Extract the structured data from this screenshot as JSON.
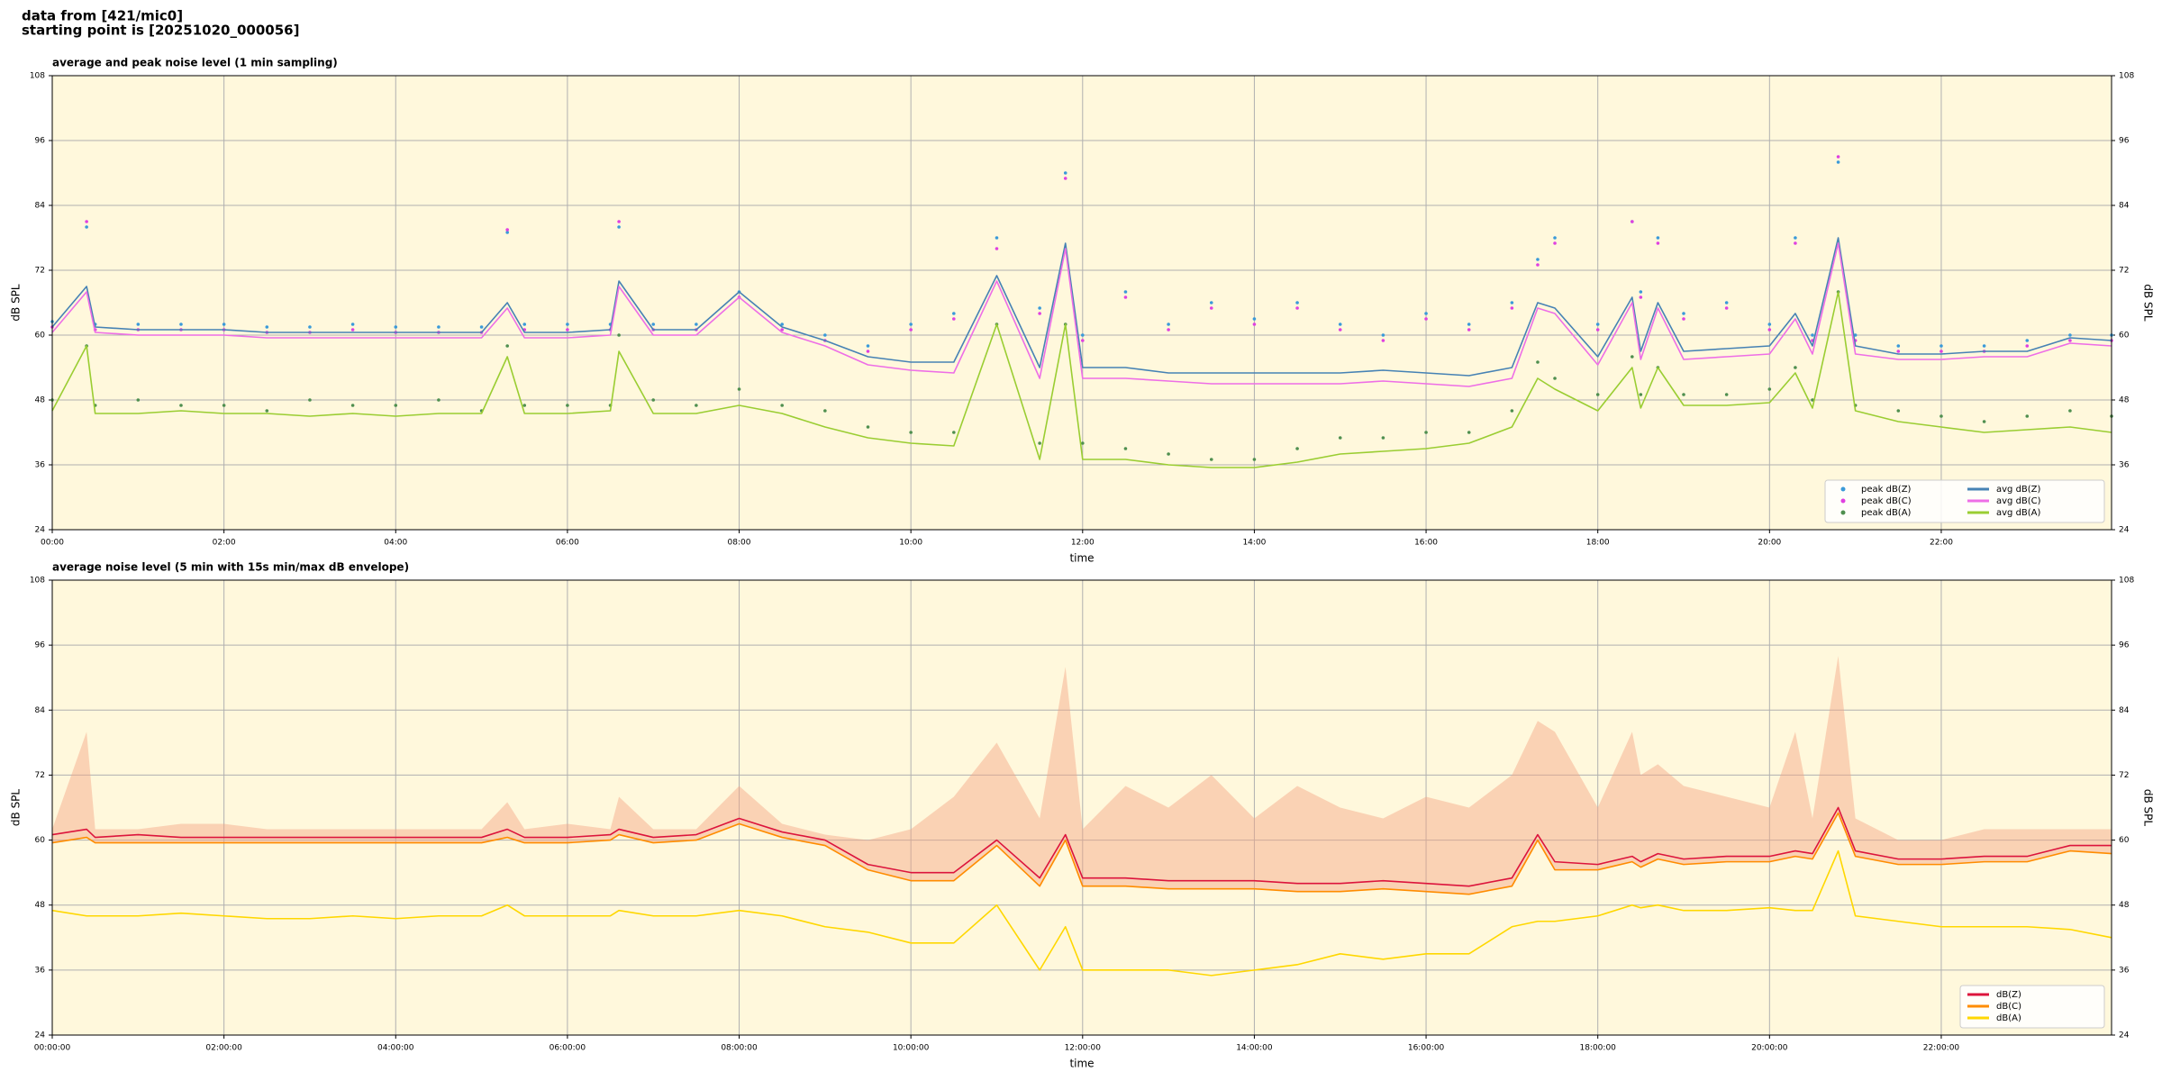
{
  "header": [
    "data from [421/mic0]",
    "starting point is [20251020_000056]"
  ],
  "chart_data": [
    {
      "type": "line",
      "title": "average and peak noise level (1 min sampling)",
      "xlabel": "time",
      "ylabel": "dB SPL",
      "background": "#fff8dc",
      "grid": true,
      "legend": "lower right",
      "legend_columns": 2,
      "xlim": [
        "00:00",
        "23:59"
      ],
      "ylim": [
        24,
        108
      ],
      "xticks": [
        "00:00",
        "02:00",
        "04:00",
        "06:00",
        "08:00",
        "10:00",
        "12:00",
        "14:00",
        "16:00",
        "18:00",
        "20:00",
        "22:00"
      ],
      "yticks": [
        24,
        36,
        48,
        60,
        72,
        84,
        96,
        108
      ],
      "x": [
        "00:00",
        "00:24",
        "00:30",
        "01:00",
        "01:30",
        "02:00",
        "02:30",
        "03:00",
        "03:30",
        "04:00",
        "04:30",
        "05:00",
        "05:18",
        "05:30",
        "06:00",
        "06:30",
        "06:36",
        "07:00",
        "07:30",
        "08:00",
        "08:30",
        "09:00",
        "09:30",
        "10:00",
        "10:30",
        "11:00",
        "11:30",
        "11:48",
        "12:00",
        "12:30",
        "13:00",
        "13:30",
        "14:00",
        "14:30",
        "15:00",
        "15:30",
        "16:00",
        "16:30",
        "17:00",
        "17:18",
        "17:30",
        "18:00",
        "18:24",
        "18:30",
        "18:42",
        "19:00",
        "19:30",
        "20:00",
        "20:18",
        "20:30",
        "20:48",
        "21:00",
        "21:30",
        "22:00",
        "22:30",
        "23:00",
        "23:30",
        "23:59"
      ],
      "series": [
        {
          "name": "peak dB(Z)",
          "type": "scatter",
          "color": "#3a9ad9",
          "values": [
            62.5,
            80,
            62,
            62,
            62,
            62,
            61.5,
            61.5,
            62,
            61.5,
            61.5,
            61.5,
            79,
            62,
            62,
            62,
            80,
            62,
            62,
            68,
            62,
            60,
            58,
            62,
            64,
            78,
            65,
            90,
            60,
            68,
            62,
            66,
            63,
            66,
            62,
            60,
            64,
            62,
            66,
            74,
            78,
            62,
            81,
            68,
            78,
            64,
            66,
            62,
            78,
            60,
            92,
            60,
            58,
            58,
            58,
            59,
            60,
            60
          ]
        },
        {
          "name": "peak dB(C)",
          "type": "scatter",
          "color": "#e040e0",
          "values": [
            61.5,
            81,
            61,
            61,
            61,
            61,
            60.5,
            60.5,
            61,
            60.5,
            60.5,
            60.5,
            79.5,
            61,
            61,
            61,
            81,
            61,
            61,
            67,
            61,
            59,
            57,
            61,
            63,
            76,
            64,
            89,
            59,
            67,
            61,
            65,
            62,
            65,
            61,
            59,
            63,
            61,
            65,
            73,
            77,
            61,
            81,
            67,
            77,
            63,
            65,
            61,
            77,
            59,
            93,
            59,
            57,
            57,
            57,
            58,
            59,
            59
          ]
        },
        {
          "name": "peak dB(A)",
          "type": "scatter",
          "color": "#4f8f4f",
          "values": [
            48,
            58,
            47,
            48,
            47,
            47,
            46,
            48,
            47,
            47,
            48,
            46,
            58,
            47,
            47,
            47,
            60,
            48,
            47,
            50,
            47,
            46,
            43,
            42,
            42,
            62,
            40,
            62,
            40,
            39,
            38,
            37,
            37,
            39,
            41,
            41,
            42,
            42,
            46,
            55,
            52,
            49,
            56,
            49,
            54,
            49,
            49,
            50,
            54,
            48,
            68,
            47,
            46,
            45,
            44,
            45,
            46,
            45
          ]
        },
        {
          "name": "avg dB(Z)",
          "type": "line",
          "color": "#4682b4",
          "values": [
            61.5,
            69,
            61.5,
            61,
            61,
            61,
            60.5,
            60.5,
            60.5,
            60.5,
            60.5,
            60.5,
            66,
            60.5,
            60.5,
            61,
            70,
            61,
            61,
            68,
            61.5,
            59,
            56,
            55,
            55,
            71,
            54,
            77,
            54,
            54,
            53,
            53,
            53,
            53,
            53,
            53.5,
            53,
            52.5,
            54,
            66,
            65,
            56,
            67,
            57,
            66,
            57,
            57.5,
            58,
            64,
            58,
            78,
            58,
            56.5,
            56.5,
            57,
            57,
            59.5,
            59
          ]
        },
        {
          "name": "avg dB(C)",
          "type": "line",
          "color": "#ee6ee6",
          "values": [
            60.5,
            68,
            60.5,
            60,
            60,
            60,
            59.5,
            59.5,
            59.5,
            59.5,
            59.5,
            59.5,
            65,
            59.5,
            59.5,
            60,
            69,
            60,
            60,
            67,
            60.5,
            58,
            54.5,
            53.5,
            53,
            70,
            52,
            76,
            52,
            52,
            51.5,
            51,
            51,
            51,
            51,
            51.5,
            51,
            50.5,
            52,
            65,
            64,
            54.5,
            66,
            55.5,
            65,
            55.5,
            56,
            56.5,
            63,
            56.5,
            77,
            56.5,
            55.5,
            55.5,
            56,
            56,
            58.5,
            58
          ]
        },
        {
          "name": "avg dB(A)",
          "type": "line",
          "color": "#9acd32",
          "values": [
            46,
            58,
            45.5,
            45.5,
            46,
            45.5,
            45.5,
            45,
            45.5,
            45,
            45.5,
            45.5,
            56,
            45.5,
            45.5,
            46,
            57,
            45.5,
            45.5,
            47,
            45.5,
            43,
            41,
            40,
            39.5,
            62,
            37,
            62,
            37,
            37,
            36,
            35.5,
            35.5,
            36.5,
            38,
            38.5,
            39,
            40,
            43,
            52,
            50,
            46,
            54,
            46.5,
            54,
            47,
            47,
            47.5,
            53,
            46.5,
            68,
            46,
            44,
            43,
            42,
            42.5,
            43,
            42
          ]
        }
      ]
    },
    {
      "type": "line",
      "title": "average noise level (5 min with 15s min/max dB envelope)",
      "xlabel": "time",
      "ylabel": "dB SPL",
      "background": "#fff8dc",
      "grid": true,
      "legend": "lower right",
      "legend_columns": 1,
      "xlim": [
        "00:00:00",
        "23:59:00"
      ],
      "ylim": [
        24,
        108
      ],
      "xticks": [
        "00:00:00",
        "02:00:00",
        "04:00:00",
        "06:00:00",
        "08:00:00",
        "10:00:00",
        "12:00:00",
        "14:00:00",
        "16:00:00",
        "18:00:00",
        "20:00:00",
        "22:00:00"
      ],
      "yticks": [
        24,
        36,
        48,
        60,
        72,
        84,
        96,
        108
      ],
      "x": [
        "00:00:00",
        "00:24:00",
        "00:30:00",
        "01:00:00",
        "01:30:00",
        "02:00:00",
        "02:30:00",
        "03:00:00",
        "03:30:00",
        "04:00:00",
        "04:30:00",
        "05:00:00",
        "05:18:00",
        "05:30:00",
        "06:00:00",
        "06:30:00",
        "06:36:00",
        "07:00:00",
        "07:30:00",
        "08:00:00",
        "08:30:00",
        "09:00:00",
        "09:30:00",
        "10:00:00",
        "10:30:00",
        "11:00:00",
        "11:30:00",
        "11:48:00",
        "12:00:00",
        "12:30:00",
        "13:00:00",
        "13:30:00",
        "14:00:00",
        "14:30:00",
        "15:00:00",
        "15:30:00",
        "16:00:00",
        "16:30:00",
        "17:00:00",
        "17:18:00",
        "17:30:00",
        "18:00:00",
        "18:24:00",
        "18:30:00",
        "18:42:00",
        "19:00:00",
        "19:30:00",
        "20:00:00",
        "20:18:00",
        "20:30:00",
        "20:48:00",
        "21:00:00",
        "21:30:00",
        "22:00:00",
        "22:30:00",
        "23:00:00",
        "23:30:00",
        "23:59:00"
      ],
      "envelope": {
        "color": "#f4a582",
        "opacity": 0.45,
        "values": [
          62,
          80,
          62,
          62,
          63,
          63,
          62,
          62,
          62,
          62,
          62,
          62,
          67,
          62,
          63,
          62,
          68,
          62,
          62,
          70,
          63,
          61,
          60,
          62,
          68,
          78,
          64,
          92,
          62,
          70,
          66,
          72,
          64,
          70,
          66,
          64,
          68,
          66,
          72,
          82,
          80,
          66,
          80,
          72,
          74,
          70,
          68,
          66,
          80,
          64,
          94,
          64,
          60,
          60,
          62,
          62,
          62,
          62
        ]
      },
      "series": [
        {
          "name": "dB(Z)",
          "type": "line",
          "color": "#dc143c",
          "values": [
            61,
            62,
            60.5,
            61,
            60.5,
            60.5,
            60.5,
            60.5,
            60.5,
            60.5,
            60.5,
            60.5,
            62,
            60.5,
            60.5,
            61,
            62,
            60.5,
            61,
            64,
            61.5,
            60,
            55.5,
            54,
            54,
            60,
            53,
            61,
            53,
            53,
            52.5,
            52.5,
            52.5,
            52,
            52,
            52.5,
            52,
            51.5,
            53,
            61,
            56,
            55.5,
            57,
            56,
            57.5,
            56.5,
            57,
            57,
            58,
            57.5,
            66,
            58,
            56.5,
            56.5,
            57,
            57,
            59,
            59
          ]
        },
        {
          "name": "dB(C)",
          "type": "line",
          "color": "#ff8c00",
          "values": [
            59.5,
            60.5,
            59.5,
            59.5,
            59.5,
            59.5,
            59.5,
            59.5,
            59.5,
            59.5,
            59.5,
            59.5,
            60.5,
            59.5,
            59.5,
            60,
            61,
            59.5,
            60,
            63,
            60.5,
            59,
            54.5,
            52.5,
            52.5,
            59,
            51.5,
            60,
            51.5,
            51.5,
            51,
            51,
            51,
            50.5,
            50.5,
            51,
            50.5,
            50,
            51.5,
            60,
            54.5,
            54.5,
            56,
            55,
            56.5,
            55.5,
            56,
            56,
            57,
            56.5,
            65,
            57,
            55.5,
            55.5,
            56,
            56,
            58,
            57.5
          ]
        },
        {
          "name": "dB(A)",
          "type": "line",
          "color": "#ffd700",
          "values": [
            47,
            46,
            46,
            46,
            46.5,
            46,
            45.5,
            45.5,
            46,
            45.5,
            46,
            46,
            48,
            46,
            46,
            46,
            47,
            46,
            46,
            47,
            46,
            44,
            43,
            41,
            41,
            48,
            36,
            44,
            36,
            36,
            36,
            35,
            36,
            37,
            39,
            38,
            39,
            39,
            44,
            45,
            45,
            46,
            48,
            47.5,
            48,
            47,
            47,
            47.5,
            47,
            47,
            58,
            46,
            45,
            44,
            44,
            44,
            43.5,
            42
          ]
        }
      ]
    }
  ]
}
